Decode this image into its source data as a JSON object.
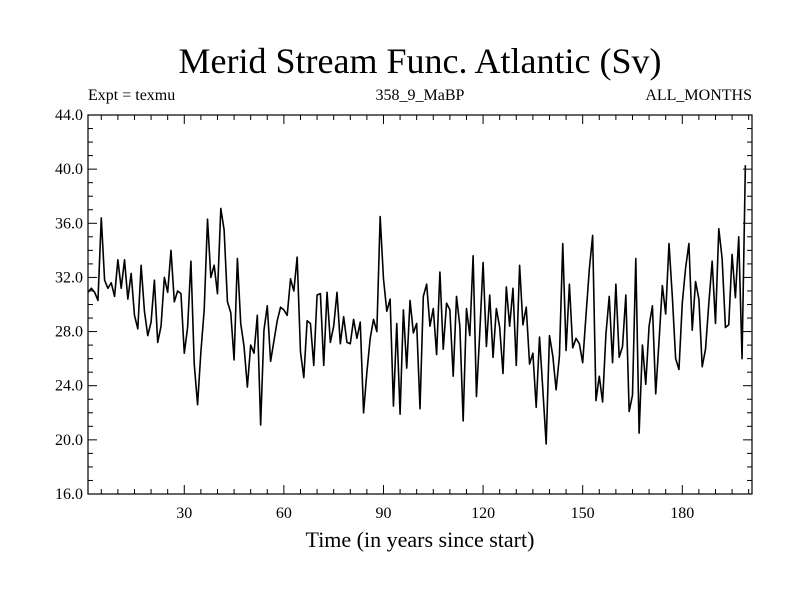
{
  "chart_data": {
    "type": "line",
    "title": "Merid Stream Func. Atlantic (Sv)",
    "subtitle_left": "Expt = texmu",
    "subtitle_center": "358_9_MaBP",
    "subtitle_right": "ALL_MONTHS",
    "xlabel": "Time (in years since start)",
    "ylabel": "",
    "xlim": [
      1,
      201
    ],
    "ylim": [
      16,
      44
    ],
    "x_ticks": [
      30,
      60,
      90,
      120,
      150,
      180
    ],
    "x_tick_labels": [
      "30",
      "60",
      "90",
      "120",
      "150",
      "180"
    ],
    "y_ticks": [
      16,
      20,
      24,
      28,
      32,
      36,
      40,
      44
    ],
    "y_tick_labels": [
      "16.0",
      "20.0",
      "24.0",
      "28.0",
      "32.0",
      "36.0",
      "40.0",
      "44.0"
    ],
    "x_start": 1,
    "x_step": 1,
    "series": [
      {
        "name": "Merid Stream Func. Atlantic",
        "values": [
          30.9,
          31.2,
          30.9,
          30.3,
          36.4,
          31.8,
          31.2,
          31.6,
          30.6,
          33.3,
          31.2,
          33.3,
          30.4,
          32.3,
          29.2,
          28.2,
          32.9,
          29.5,
          27.7,
          28.7,
          31.8,
          27.2,
          28.4,
          32.0,
          30.9,
          34.0,
          30.2,
          31.0,
          30.8,
          26.4,
          28.3,
          33.2,
          25.6,
          22.6,
          26.5,
          29.6,
          36.3,
          32.0,
          32.9,
          30.8,
          37.1,
          35.5,
          30.2,
          29.4,
          25.9,
          33.4,
          28.6,
          26.9,
          23.9,
          27.0,
          26.4,
          29.2,
          21.1,
          28.1,
          29.9,
          25.8,
          27.3,
          28.8,
          29.8,
          29.6,
          29.2,
          31.9,
          31.0,
          33.5,
          26.5,
          24.6,
          28.8,
          28.6,
          25.5,
          30.7,
          30.8,
          25.5,
          30.9,
          27.2,
          28.4,
          30.9,
          27.1,
          29.1,
          27.2,
          27.1,
          28.9,
          27.5,
          28.7,
          22.0,
          25.0,
          27.5,
          28.9,
          28.0,
          36.5,
          31.9,
          29.5,
          30.4,
          22.5,
          28.6,
          21.9,
          29.6,
          25.3,
          30.3,
          27.9,
          28.6,
          22.3,
          30.6,
          31.5,
          28.4,
          29.7,
          26.3,
          32.4,
          26.7,
          30.1,
          29.6,
          24.7,
          30.6,
          28.4,
          21.4,
          29.7,
          27.7,
          33.6,
          23.2,
          27.9,
          33.1,
          26.9,
          30.7,
          26.1,
          29.7,
          28.3,
          24.9,
          31.3,
          28.4,
          31.2,
          25.5,
          32.9,
          28.5,
          29.8,
          25.6,
          26.4,
          22.4,
          27.6,
          23.7,
          19.7,
          27.7,
          26.2,
          23.7,
          26.2,
          34.5,
          26.6,
          31.5,
          26.8,
          27.5,
          27.1,
          25.7,
          29.2,
          32.6,
          35.1,
          22.9,
          24.7,
          22.8,
          27.8,
          30.6,
          25.7,
          31.5,
          26.1,
          26.9,
          30.7,
          22.1,
          23.3,
          33.4,
          20.5,
          27.0,
          24.1,
          28.4,
          29.9,
          23.4,
          27.3,
          31.4,
          29.3,
          34.5,
          30.6,
          26.0,
          25.2,
          30.1,
          32.7,
          34.5,
          28.1,
          31.7,
          30.4,
          25.4,
          26.7,
          30.1,
          33.2,
          28.6,
          35.6,
          33.4,
          28.3,
          28.5,
          33.7,
          30.5,
          35.0,
          26.0,
          40.3
        ]
      }
    ]
  },
  "colors": {
    "line": "#000000",
    "axes": "#000000",
    "background": "#ffffff"
  }
}
